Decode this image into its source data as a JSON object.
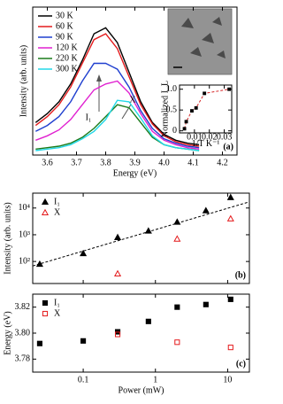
{
  "chart_data": [
    {
      "type": "line",
      "x_label": "Energy (eV)",
      "y_label": "Intensity (arb. units)",
      "panel_label": "(a)",
      "annotations": [
        "I₁",
        "X"
      ],
      "x": [
        3.56,
        3.6,
        3.64,
        3.68,
        3.72,
        3.76,
        3.8,
        3.84,
        3.88,
        3.92,
        3.96,
        4.0,
        4.04,
        4.08,
        4.12
      ],
      "series": [
        {
          "name": "30 K",
          "color": "#000000",
          "values": [
            22,
            28,
            36,
            48,
            64,
            82,
            86,
            76,
            56,
            36,
            22,
            14,
            10,
            8,
            7
          ]
        },
        {
          "name": "60 K",
          "color": "#e41a1c",
          "values": [
            20,
            26,
            34,
            46,
            62,
            78,
            82,
            72,
            53,
            34,
            21,
            13,
            9,
            7,
            6
          ]
        },
        {
          "name": "90 K",
          "color": "#1f3fcf",
          "values": [
            16,
            20,
            26,
            36,
            50,
            62,
            62,
            58,
            46,
            30,
            18,
            11,
            8,
            6,
            5
          ]
        },
        {
          "name": "120 K",
          "color": "#e020d0",
          "values": [
            10,
            13,
            17,
            24,
            34,
            44,
            48,
            50,
            42,
            28,
            16,
            10,
            7,
            5,
            4
          ]
        },
        {
          "name": "220 K",
          "color": "#1a7a1a",
          "values": [
            4,
            5,
            6,
            8,
            12,
            18,
            26,
            34,
            32,
            22,
            12,
            7,
            5,
            4,
            3
          ]
        },
        {
          "name": "300 K",
          "color": "#22d8e8",
          "values": [
            3,
            4,
            5,
            7,
            11,
            16,
            24,
            37,
            36,
            25,
            13,
            7,
            5,
            4,
            3
          ]
        }
      ],
      "xlim": [
        3.55,
        4.25
      ],
      "xticks": [
        3.6,
        3.7,
        3.8,
        3.9,
        {
          "value": 4,
          "label": "4.0"
        },
        4.1,
        4.2
      ],
      "ylim": [
        0,
        100
      ]
    },
    {
      "type": "scatter",
      "x_label": "1/T  K⁻¹",
      "y_label": "Normalized I_L",
      "series": [
        {
          "color": "#000000",
          "line_color": "#d62728",
          "marker": "square",
          "x": [
            0.0033,
            0.0045,
            0.0083,
            0.0111,
            0.0167,
            0.0333
          ],
          "values": [
            0.05,
            0.22,
            0.48,
            0.55,
            0.9,
            1.0
          ]
        }
      ],
      "xlim": [
        0,
        0.035
      ],
      "xticks": [
        0.01,
        0.02,
        0.03
      ],
      "ylim": [
        -0.05,
        1.1
      ],
      "yticks": [
        0,
        0.5,
        {
          "value": 1,
          "label": "1.0"
        }
      ]
    },
    {
      "type": "scatter",
      "y_label": "Intensity (arb. units)",
      "panel_label": "(b)",
      "xscale": "log",
      "yscale": "log",
      "xtick_labels": false,
      "series": [
        {
          "name": "I₁",
          "color": "#000000",
          "marker": "triangle",
          "x": [
            0.025,
            0.1,
            0.3,
            0.8,
            2,
            5,
            11
          ],
          "values": [
            80,
            200,
            800,
            1400,
            3000,
            8000,
            25000
          ]
        },
        {
          "name": "X",
          "color": "#e41a1c",
          "marker": "triangle-open",
          "x": [
            0.3,
            2,
            11
          ],
          "values": [
            35,
            700,
            4000
          ]
        },
        {
          "color": "#000000",
          "style": "dashed",
          "x": [
            0.02,
            20
          ],
          "values": [
            68,
            17000
          ]
        }
      ],
      "xlim": [
        0.02,
        20
      ],
      "xticks": [
        0.1,
        1,
        10
      ],
      "ylim": [
        15,
        36000
      ],
      "yticks": [
        {
          "value": 100,
          "label": "10²"
        },
        {
          "value": 1000,
          "label": "10³"
        },
        {
          "value": 10000,
          "label": "10⁴"
        }
      ]
    },
    {
      "type": "scatter",
      "x_label": "Power (mW)",
      "y_label": "Energy (eV)",
      "panel_label": "(c)",
      "xscale": "log",
      "series": [
        {
          "name": "I₁",
          "color": "#000000",
          "marker": "square",
          "x": [
            0.025,
            0.1,
            0.3,
            0.8,
            2,
            5,
            11
          ],
          "values": [
            3.792,
            3.794,
            3.801,
            3.809,
            3.82,
            3.822,
            3.826
          ]
        },
        {
          "name": "X",
          "color": "#e41a1c",
          "marker": "square-open",
          "x": [
            0.3,
            2,
            11
          ],
          "values": [
            3.799,
            3.793,
            3.789
          ]
        }
      ],
      "xlim": [
        0.02,
        20
      ],
      "xticks": [
        0.1,
        1,
        10
      ],
      "ylim": [
        3.77,
        3.83
      ],
      "yticks": [
        3.78,
        {
          "value": 3.8,
          "label": "3.80"
        },
        3.82
      ]
    }
  ]
}
